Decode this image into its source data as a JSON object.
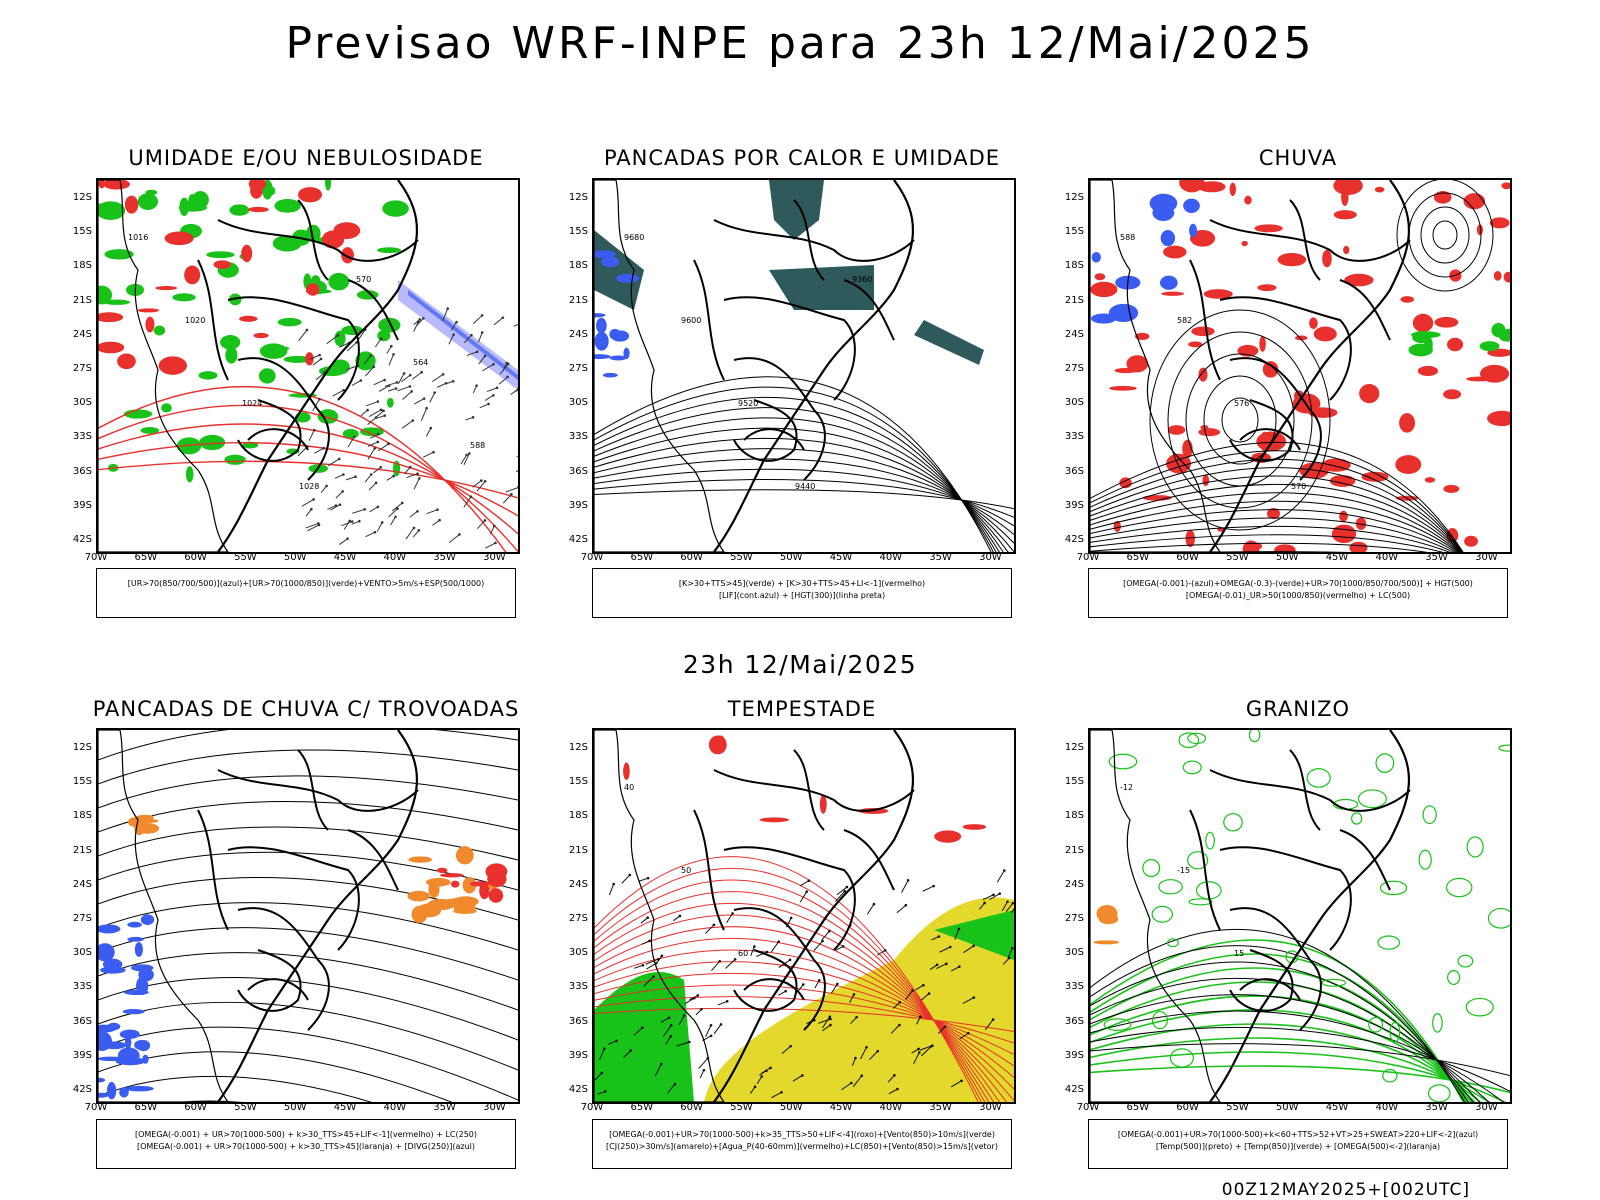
{
  "title": "Previsao WRF-INPE  para 23h 12/Mai/2025",
  "mid_title": "23h 12/Mai/2025",
  "footer": "00Z12MAY2025+[002UTC]",
  "lat_labels": [
    "12S",
    "15S",
    "18S",
    "21S",
    "24S",
    "27S",
    "30S",
    "33S",
    "36S",
    "39S",
    "42S"
  ],
  "lon_labels": [
    "70W",
    "65W",
    "60W",
    "55W",
    "50W",
    "45W",
    "40W",
    "35W",
    "30W"
  ],
  "panels": [
    {
      "title": "UMIDADE E/OU NEBULOSIDADE",
      "legend": [
        "[UR>70(850/700/500)](azul)+[UR>70(1000/850)](verde)+VENTO>5m/s+ESP(500/1000)"
      ],
      "contour_labels": [
        "1016",
        "1020",
        "1024",
        "1028",
        "570",
        "564",
        "588"
      ]
    },
    {
      "title": "PANCADAS POR CALOR E UMIDADE",
      "legend": [
        "[K>30+TTS>45](verde) + [K>30+TTS>45+LI<-1](vermelho)",
        "[LIF](cont.azul) + [HGT(300)](linha preta)"
      ],
      "contour_labels": [
        "9680",
        "9600",
        "9520",
        "9440",
        "9360"
      ]
    },
    {
      "title": "CHUVA",
      "legend": [
        "[OMEGA(-0.001)-(azul)+OMEGA(-0.3)-(verde)+UR>70(1000/850/700/500)] + HGT(500)",
        "[OMEGA(-0.01)_UR>50(1000/850)(vermelho) + LC(500)"
      ],
      "contour_labels": [
        "588",
        "582",
        "576",
        "570"
      ]
    },
    {
      "title": "PANCADAS DE CHUVA C/ TROVOADAS",
      "legend": [
        "[OMEGA(-0.001) + UR>70(1000-500) + k>30_TTS>45+LIF<-1](vermelho) + LC(250)",
        "[OMEGA(-0.001) + UR>70(1000-500) + k>30_TTS>45](laranja) + [DIVG(250)](azul)"
      ],
      "contour_labels": []
    },
    {
      "title": "TEMPESTADE",
      "legend": [
        "[OMEGA(-0.001)+UR>70(1000-500)+k>35_TTS>50+LIF<-4](roxo)+[Vento(850)>10m/s](verde)",
        "[CJ(250)>30m/s](amarelo)+[Agua_P(40-60mm)](vermelho)+LC(850)+[Vento(850)>15m/s](vetor)"
      ],
      "contour_labels": [
        "40",
        "50",
        "60"
      ]
    },
    {
      "title": "GRANIZO",
      "legend": [
        "[OMEGA(-0.001)+UR>70(1000-500)+k<60+TTS>52+VT>25+SWEAT>220+LIF<-2](azul)",
        "[Temp(500)](preto) + [Temp(850)](verde) + [OMEGA(500)<-2](laranja)"
      ],
      "contour_labels": [
        "-12",
        "-15",
        "15"
      ]
    }
  ],
  "colors": {
    "red": "#e8302c",
    "green": "#19c219",
    "blue": "#3a5cf0",
    "teal": "#2e5a5c",
    "yellow": "#e4d82c",
    "orange": "#f08a2c",
    "lavender": "#a8a8ff"
  }
}
